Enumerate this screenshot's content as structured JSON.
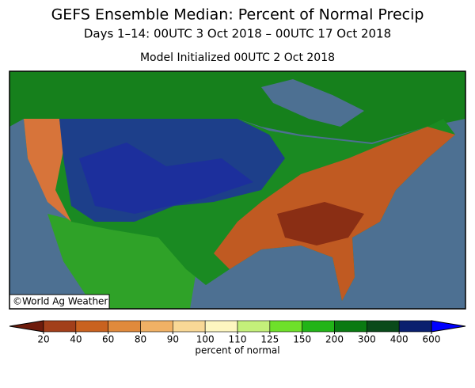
{
  "title": "GEFS Ensemble Median: Percent of Normal Precip",
  "subtitle": "Days 1–14: 00UTC 3 Oct 2018 – 00UTC 17 Oct 2018",
  "init_line": "Model Initialized 00UTC 2 Oct 2018",
  "copyright": "©World Ag Weather",
  "colorbar": {
    "label": "percent of normal",
    "ticks": [
      20,
      40,
      60,
      80,
      90,
      100,
      110,
      125,
      150,
      200,
      300,
      400,
      600
    ],
    "colors": [
      "#6e1c0c",
      "#a23f1a",
      "#c9621f",
      "#e08a3c",
      "#f1b165",
      "#f9d896",
      "#fdf6c0",
      "#c4f07a",
      "#6ee02a",
      "#22b418",
      "#0a7a12",
      "#0a4a1a",
      "#0a1f6e",
      "#0000ff"
    ]
  }
}
